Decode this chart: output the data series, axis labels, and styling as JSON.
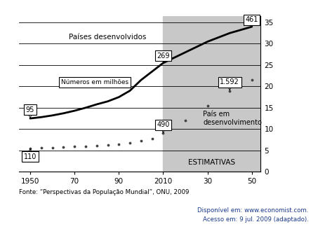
{
  "x_developed": [
    1950,
    1955,
    1960,
    1965,
    1970,
    1975,
    1980,
    1985,
    1990,
    1995,
    2000,
    2005,
    2010,
    2020,
    2030,
    2040,
    2050
  ],
  "y_developed": [
    12.5,
    12.8,
    13.2,
    13.7,
    14.3,
    15.0,
    15.8,
    16.5,
    17.5,
    19.0,
    21.5,
    23.5,
    25.5,
    28.0,
    30.5,
    32.5,
    34.0
  ],
  "x_developing": [
    1950,
    1955,
    1960,
    1965,
    1970,
    1975,
    1980,
    1985,
    1990,
    1995,
    2000,
    2005,
    2010,
    2020,
    2030,
    2040,
    2050
  ],
  "y_developing": [
    5.5,
    5.6,
    5.7,
    5.8,
    5.9,
    6.0,
    6.1,
    6.3,
    6.5,
    6.8,
    7.2,
    7.8,
    9.0,
    12.0,
    15.5,
    19.0,
    21.5
  ],
  "shade_x_start": 2010,
  "shade_x_end": 2054,
  "anno_dev_1950_y": 12.5,
  "anno_dev_2010_y": 25.5,
  "anno_dev_2050_y": 34.0,
  "anno_devg_1950_y": 5.5,
  "anno_devg_2010_y": 9.0,
  "anno_devg_2040_y": 19.0,
  "label_developed": "Países desenvolvidos",
  "label_developing": "Paíse em\ndesenvolvimento",
  "label_numbros": "Números em milhões",
  "label_estimativas": "ESTIMATIVAS",
  "fonte": "Fonte: “Perspectivas da População Mundial”, ONU, 2009",
  "disponivel_line1": "Disponível em: www.economist.com.",
  "disponivel_line2": "Acesso em: 9 jul. 2009 (adaptado).",
  "xticks": [
    1950,
    1970,
    1990,
    2010,
    2030,
    2050
  ],
  "xticklabels": [
    "1950",
    "70",
    "90",
    "2010",
    "30",
    "50"
  ],
  "yticks": [
    0,
    5,
    10,
    15,
    20,
    25,
    30,
    35
  ],
  "ylim": [
    0,
    36.5
  ],
  "xlim": [
    1945,
    2054
  ],
  "shade_color": "#c8c8c8",
  "line_color_developed": "#000000",
  "line_color_developing": "#444444",
  "disponivel_color": "#1a3a8a"
}
